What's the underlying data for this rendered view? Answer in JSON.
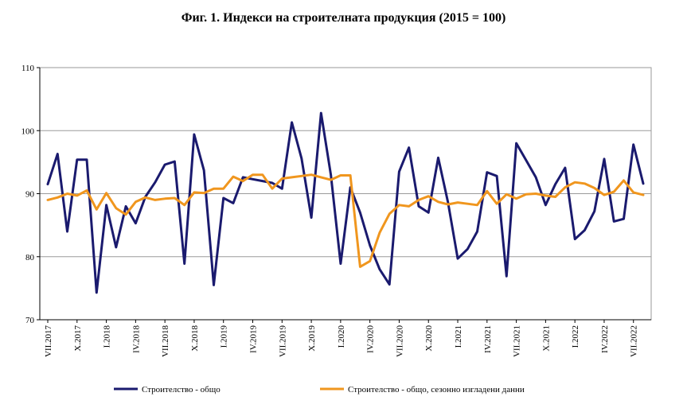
{
  "chart_data": {
    "type": "line",
    "title": "Фиг. 1. Индекси на строителната продукция (2015 = 100)",
    "xlabel": "",
    "ylabel": "",
    "ylim": [
      70,
      110
    ],
    "yticks": [
      70,
      80,
      90,
      100,
      110
    ],
    "grid": "horizontal",
    "legend_position": "bottom",
    "x_tick_labels": [
      "VII.2017",
      "X.2017",
      "I.2018",
      "IV.2018",
      "VII.2018",
      "X.2018",
      "I.2019",
      "IV.2019",
      "VII.2019",
      "X.2019",
      "I.2020",
      "IV.2020",
      "VII.2020",
      "X.2020",
      "I.2021",
      "IV.2021",
      "VII.2021",
      "X.2021",
      "I.2022",
      "IV.2022",
      "VII.2022"
    ],
    "series": [
      {
        "name": "Строителство - общо",
        "color": "#1a1a6e",
        "values": [
          91.5,
          96.3,
          84.0,
          95.4,
          95.4,
          74.3,
          88.2,
          81.5,
          88.0,
          85.3,
          89.5,
          91.8,
          94.6,
          95.1,
          78.9,
          99.4,
          93.7,
          75.5,
          89.3,
          88.5,
          92.6,
          92.3,
          92.0,
          91.7,
          90.8,
          101.3,
          95.6,
          86.2,
          102.8,
          93.0,
          78.9,
          91.0,
          87.0,
          81.8,
          78.0,
          75.6,
          93.5,
          97.3,
          88.0,
          87.0,
          95.7,
          88.6,
          79.7,
          81.2,
          84.0,
          93.4,
          92.8,
          76.9,
          98.0,
          95.3,
          92.6,
          88.2,
          91.5,
          94.1,
          82.8,
          84.2,
          87.2,
          95.5,
          85.6,
          86.0,
          97.8,
          91.6
        ]
      },
      {
        "name": "Строителство - общо, сезонно изгладени данни",
        "color": "#f0961e",
        "values": [
          89.0,
          89.4,
          90.0,
          89.7,
          90.5,
          87.5,
          90.1,
          87.7,
          86.7,
          88.7,
          89.4,
          89.0,
          89.2,
          89.3,
          88.2,
          90.2,
          90.1,
          90.8,
          90.8,
          92.7,
          92.0,
          93.0,
          93.0,
          90.8,
          92.4,
          92.6,
          92.8,
          93.0,
          92.6,
          92.2,
          92.9,
          92.9,
          78.4,
          79.3,
          83.8,
          86.8,
          88.2,
          88.0,
          89.0,
          89.6,
          88.7,
          88.3,
          88.6,
          88.4,
          88.2,
          90.4,
          88.4,
          89.9,
          89.2,
          89.9,
          90.0,
          89.7,
          89.5,
          91.0,
          91.8,
          91.6,
          90.9,
          89.8,
          90.3,
          92.1,
          90.2,
          89.8
        ]
      }
    ]
  }
}
